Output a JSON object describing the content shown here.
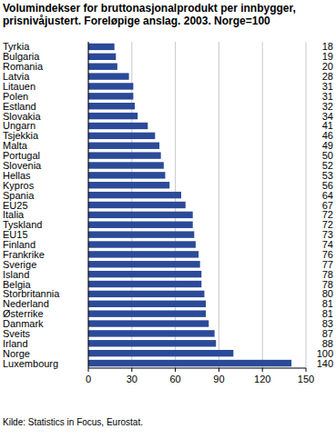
{
  "chart_data": {
    "type": "bar",
    "orientation": "horizontal",
    "title": [
      "Volumindekser for bruttonasjonalprodukt per innbygger,",
      "prisnivåjustert. Foreløpige anslag. 2003. Norge=100"
    ],
    "source": "Kilde: Statistics in Focus, Eurostat.",
    "categories": [
      "Tyrkia",
      "Bulgaria",
      "Romania",
      "Latvia",
      "Litauen",
      "Polen",
      "Estland",
      "Slovakia",
      "Ungarn",
      "Tsjekkia",
      "Malta",
      "Portugal",
      "Slovenia",
      "Hellas",
      "Kypros",
      "Spania",
      "EU25",
      "Italia",
      "Tyskland",
      "EU15",
      "Finland",
      "Frankrike",
      "Sverige",
      "Island",
      "Belgia",
      "Storbritannia",
      "Nederland",
      "Østerrike",
      "Danmark",
      "Sveits",
      "Irland",
      "Norge",
      "Luxembourg"
    ],
    "values": [
      18,
      19,
      20,
      28,
      31,
      31,
      32,
      34,
      41,
      46,
      49,
      50,
      52,
      53,
      56,
      64,
      67,
      72,
      72,
      73,
      74,
      76,
      77,
      78,
      78,
      80,
      81,
      81,
      83,
      87,
      88,
      100,
      140
    ],
    "color": "#2b4a98",
    "xlim": [
      0,
      150
    ],
    "xticks": [
      0,
      30,
      60,
      90,
      120,
      150
    ],
    "grid": true,
    "data_labels": true
  }
}
